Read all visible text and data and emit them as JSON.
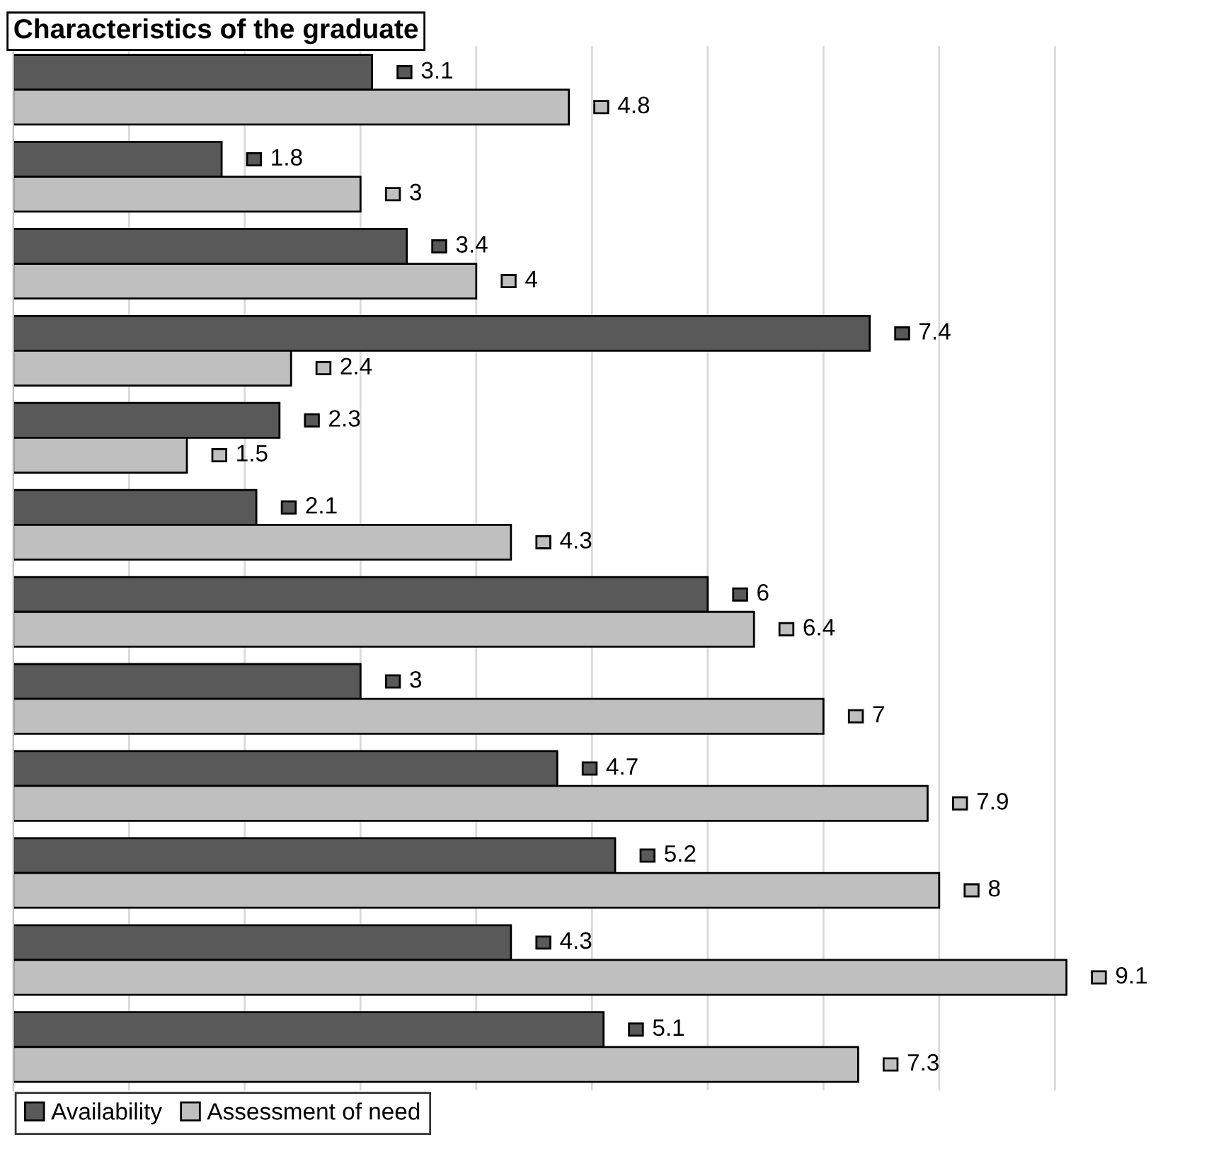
{
  "chart_data": {
    "type": "bar",
    "orientation": "horizontal",
    "title": "Characteristics of the graduate",
    "categories": [
      null,
      null,
      null,
      null,
      null,
      null,
      null,
      null,
      null,
      null,
      null,
      null
    ],
    "series": [
      {
        "name": "Availability",
        "color": "#595959",
        "values": [
          3.1,
          1.8,
          3.4,
          7.4,
          2.3,
          2.1,
          6,
          3,
          4.7,
          5.2,
          4.3,
          5.1
        ],
        "value_labels": [
          "3.1",
          "1.8",
          "3.4",
          "7.4",
          "2.3",
          "2.1",
          "6",
          "3",
          "4.7",
          "5.2",
          "4.3",
          "5.1"
        ]
      },
      {
        "name": "Assessment of need",
        "color": "#bfbfbf",
        "values": [
          4.8,
          3,
          4,
          2.4,
          1.5,
          4.3,
          6.4,
          7,
          7.9,
          8,
          9.1,
          7.3
        ],
        "value_labels": [
          "4.8",
          "3",
          "4",
          "2.4",
          "1.5",
          "4.3",
          "6.4",
          "7",
          "7.9",
          "8",
          "9.1",
          "7.3"
        ]
      }
    ],
    "xticks": [
      {
        "value": 1,
        "label": null
      },
      {
        "value": 2,
        "label": null
      },
      {
        "value": 3,
        "label": null
      },
      {
        "value": 4,
        "label": null
      },
      {
        "value": 5,
        "label": null
      },
      {
        "value": 6,
        "label": null
      },
      {
        "value": 7,
        "label": null
      },
      {
        "value": 8,
        "label": null
      },
      {
        "value": 9,
        "label": null
      }
    ],
    "grid": "x",
    "legend": "bottom left"
  }
}
